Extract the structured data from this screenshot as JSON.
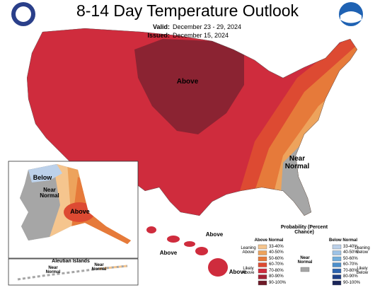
{
  "header": {
    "title": "8-14 Day Temperature Outlook",
    "valid_label": "Valid:",
    "valid": "December 23 - 29, 2024",
    "issued_label": "Issued:",
    "issued": "December 15, 2024"
  },
  "map": {
    "conus_above": "Above",
    "conus_near_normal": "Near Normal",
    "alaska_below": "Below",
    "alaska_near_normal": "Near Normal",
    "alaska_above": "Above",
    "aleutian_title": "Aleutian Islands",
    "aleutian_near_normal_1": "Near Normal",
    "aleutian_near_normal_2": "Near Normal",
    "hawaii_above_1": "Above",
    "hawaii_above_2": "Above",
    "hawaii_above_3": "Above"
  },
  "legend": {
    "title": "Probability (Percent Chance)",
    "above": {
      "heading": "Above Normal",
      "leaning": "Leaning Above",
      "likely": "Likely Above",
      "bins": [
        {
          "label": "33-40%",
          "color": "#f5c58e"
        },
        {
          "label": "40-50%",
          "color": "#eda35c"
        },
        {
          "label": "50-60%",
          "color": "#e67a3a"
        },
        {
          "label": "60-70%",
          "color": "#dd4a32"
        },
        {
          "label": "70-80%",
          "color": "#cf2c3d"
        },
        {
          "label": "80-90%",
          "color": "#a22234"
        },
        {
          "label": "90-100%",
          "color": "#6e1a27"
        }
      ]
    },
    "near": {
      "label": "Near Normal",
      "color": "#a6a6a6"
    },
    "below": {
      "heading": "Below Normal",
      "leaning": "Leaning Below",
      "likely": "Likely Below",
      "bins": [
        {
          "label": "33-40%",
          "color": "#bcd1ea"
        },
        {
          "label": "40-50%",
          "color": "#9ec3e6"
        },
        {
          "label": "50-60%",
          "color": "#72aedc"
        },
        {
          "label": "60-70%",
          "color": "#4c8fcb"
        },
        {
          "label": "70-80%",
          "color": "#2c63ae"
        },
        {
          "label": "80-90%",
          "color": "#1d3f86"
        },
        {
          "label": "90-100%",
          "color": "#1a2559"
        }
      ]
    }
  }
}
